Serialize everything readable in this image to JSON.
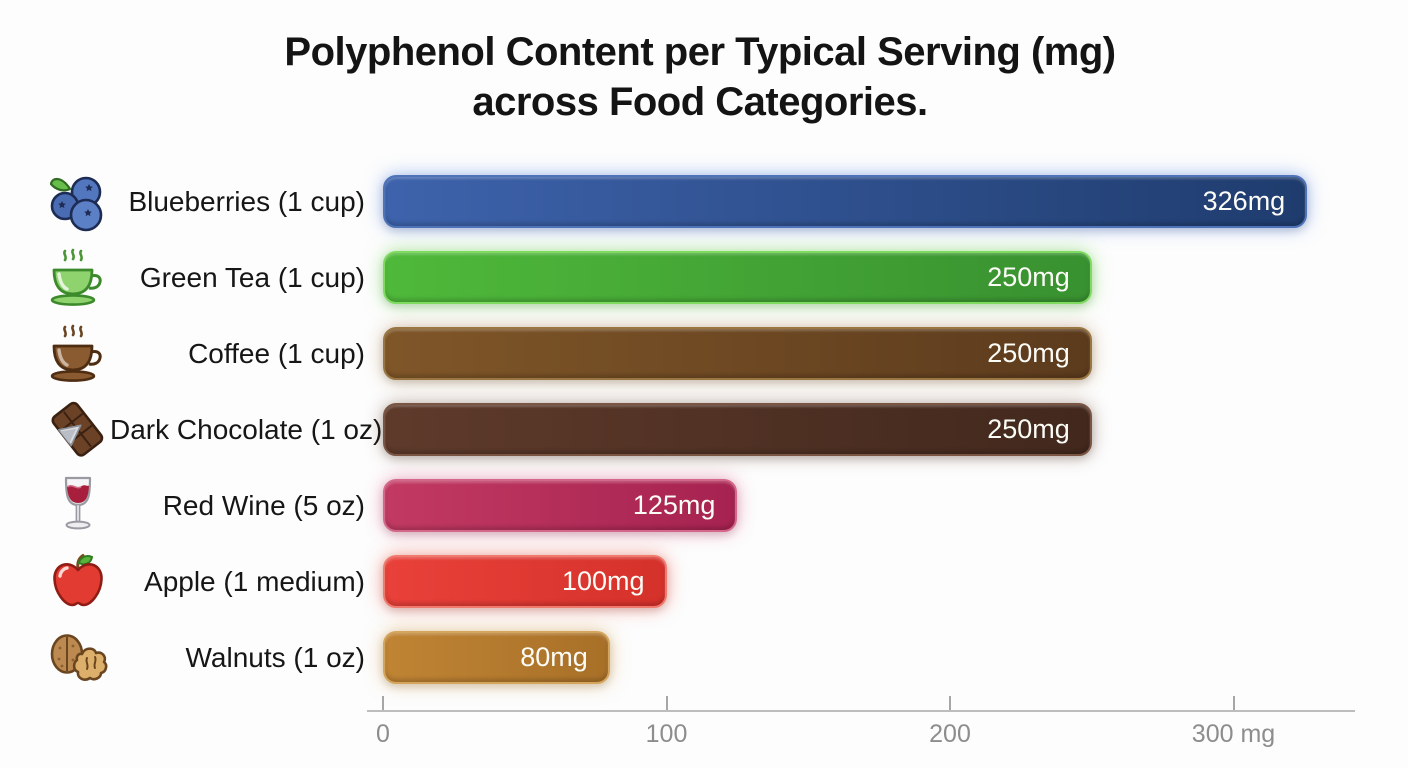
{
  "title": {
    "line1": "Polyphenol Content per Typical Serving (mg)",
    "line2": "across Food Categories."
  },
  "chart_data": {
    "type": "bar",
    "orientation": "horizontal",
    "title": "Polyphenol Content per Typical Serving (mg) across Food Categories.",
    "unit": "mg",
    "xlim": [
      0,
      340
    ],
    "grid": false,
    "legend": false,
    "categories": [
      "Blueberries (1 cup)",
      "Green Tea (1 cup)",
      "Coffee (1 cup)",
      "Dark Chocolate (1 oz)",
      "Red Wine (5 oz)",
      "Apple (1 medium)",
      "Walnuts (1 oz)"
    ],
    "values": [
      326,
      250,
      250,
      250,
      125,
      100,
      80
    ],
    "bars": [
      {
        "label": "Blueberries (1 cup)",
        "value": 326,
        "value_label": "326mg",
        "icon": "blueberries-icon",
        "color_start": "#3E63AC",
        "color_end": "#1F3C6E",
        "edge": "#4e73b8",
        "glow": "rgba(80,130,230,0.50)"
      },
      {
        "label": "Green Tea (1 cup)",
        "value": 250,
        "value_label": "250mg",
        "icon": "green-tea-icon",
        "color_start": "#4FB93A",
        "color_end": "#389130",
        "edge": "#7fdb60",
        "glow": "rgba(110,215,80,0.55)"
      },
      {
        "label": "Coffee (1 cup)",
        "value": 250,
        "value_label": "250mg",
        "icon": "coffee-icon",
        "color_start": "#7F5628",
        "color_end": "#5C3B1D",
        "edge": "#9a7742",
        "glow": "rgba(160,110,50,0.40)"
      },
      {
        "label": "Dark Chocolate (1 oz)",
        "value": 250,
        "value_label": "250mg",
        "icon": "dark-chocolate-icon",
        "color_start": "#5E3A2B",
        "color_end": "#42281D",
        "edge": "#7a5543",
        "glow": "rgba(100,60,40,0.40)"
      },
      {
        "label": "Red Wine (5 oz)",
        "value": 125,
        "value_label": "125mg",
        "icon": "red-wine-icon",
        "color_start": "#C23A63",
        "color_end": "#A62250",
        "edge": "#d4688a",
        "glow": "rgba(220,70,120,0.45)"
      },
      {
        "label": "Apple (1 medium)",
        "value": 100,
        "value_label": "100mg",
        "icon": "apple-icon",
        "color_start": "#E9413A",
        "color_end": "#D5312B",
        "edge": "#f07a6e",
        "glow": "rgba(240,80,60,0.50)"
      },
      {
        "label": "Walnuts (1 oz)",
        "value": 80,
        "value_label": "80mg",
        "icon": "walnuts-icon",
        "color_start": "#C08434",
        "color_end": "#A87028",
        "edge": "#d4a55c",
        "glow": "rgba(215,155,65,0.50)"
      }
    ],
    "axis": {
      "ticks": [
        {
          "mg": 0,
          "label": "0"
        },
        {
          "mg": 100,
          "label": "100"
        },
        {
          "mg": 200,
          "label": "200"
        },
        {
          "mg": 300,
          "label": "300 mg"
        }
      ]
    }
  }
}
